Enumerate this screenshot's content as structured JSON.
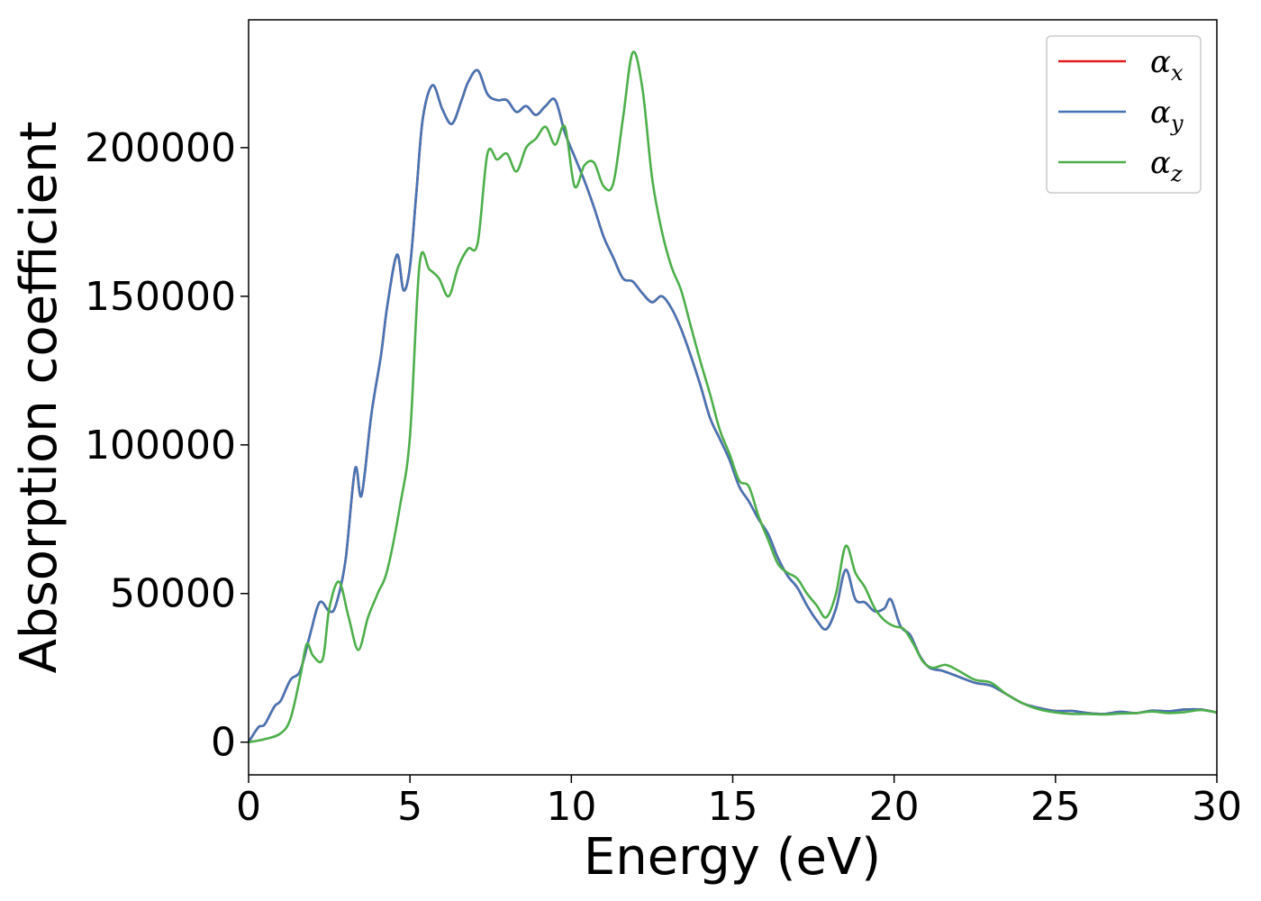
{
  "chart_data": {
    "type": "line",
    "xlabel": "Energy (eV)",
    "ylabel": "Absorption coefficient",
    "xlim": [
      0,
      30
    ],
    "ylim": [
      -11000,
      243000
    ],
    "xticks": [
      0,
      5,
      10,
      15,
      20,
      25,
      30
    ],
    "xtick_labels": [
      "0",
      "5",
      "10",
      "15",
      "20",
      "25",
      "30"
    ],
    "yticks": [
      0,
      50000,
      100000,
      150000,
      200000
    ],
    "ytick_labels": [
      "0",
      "50000",
      "100000",
      "150000",
      "200000"
    ],
    "grid": false,
    "legend_position": "top-right",
    "series": [
      {
        "name": "α_x",
        "symbol": "α",
        "subscript": "x",
        "color": "#e41a1c",
        "x": [
          0,
          0.3,
          0.5,
          0.8,
          1.0,
          1.3,
          1.6,
          1.9,
          2.2,
          2.5,
          2.7,
          3.0,
          3.3,
          3.5,
          3.8,
          4.1,
          4.3,
          4.6,
          4.8,
          5.0,
          5.2,
          5.4,
          5.7,
          6.0,
          6.3,
          6.6,
          6.8,
          7.1,
          7.4,
          7.7,
          8.0,
          8.3,
          8.6,
          8.9,
          9.2,
          9.5,
          9.8,
          10.1,
          10.4,
          10.7,
          11.0,
          11.3,
          11.6,
          11.9,
          12.2,
          12.5,
          12.8,
          13.1,
          13.4,
          13.7,
          14.0,
          14.3,
          14.6,
          14.9,
          15.2,
          15.5,
          15.8,
          16.1,
          16.4,
          16.7,
          17.0,
          17.3,
          17.6,
          17.9,
          18.2,
          18.5,
          18.8,
          19.1,
          19.4,
          19.7,
          19.9,
          20.2,
          20.5,
          20.8,
          21.1,
          21.5,
          22.0,
          22.5,
          23.0,
          23.5,
          24.0,
          24.5,
          25.0,
          25.5,
          26.0,
          26.5,
          27.0,
          27.5,
          28.0,
          28.5,
          29.0,
          29.5,
          30.0
        ],
        "y": [
          0,
          5000,
          6000,
          12000,
          14000,
          21000,
          24000,
          36000,
          47000,
          44000,
          46000,
          61000,
          92000,
          83000,
          110000,
          130000,
          147000,
          164000,
          152000,
          160000,
          185000,
          210000,
          221000,
          213000,
          208000,
          216000,
          222000,
          226000,
          218000,
          216000,
          216000,
          212000,
          214000,
          211000,
          214000,
          216000,
          205000,
          197000,
          189000,
          180000,
          170000,
          163000,
          156000,
          155000,
          151000,
          148000,
          150000,
          146000,
          139000,
          130000,
          120000,
          109000,
          102000,
          95000,
          86000,
          81000,
          75000,
          70000,
          62000,
          56000,
          52000,
          46000,
          41000,
          38000,
          45000,
          58000,
          48000,
          47000,
          44000,
          45000,
          48000,
          39000,
          36000,
          29000,
          25000,
          24000,
          22000,
          20000,
          19000,
          16000,
          13000,
          11500,
          10500,
          10500,
          9800,
          9500,
          10200,
          9800,
          10600,
          10400,
          11000,
          11000,
          10000
        ]
      },
      {
        "name": "α_y",
        "symbol": "α",
        "subscript": "y",
        "color": "#4575b4",
        "x": [
          0,
          0.3,
          0.5,
          0.8,
          1.0,
          1.3,
          1.6,
          1.9,
          2.2,
          2.5,
          2.7,
          3.0,
          3.3,
          3.5,
          3.8,
          4.1,
          4.3,
          4.6,
          4.8,
          5.0,
          5.2,
          5.4,
          5.7,
          6.0,
          6.3,
          6.6,
          6.8,
          7.1,
          7.4,
          7.7,
          8.0,
          8.3,
          8.6,
          8.9,
          9.2,
          9.5,
          9.8,
          10.1,
          10.4,
          10.7,
          11.0,
          11.3,
          11.6,
          11.9,
          12.2,
          12.5,
          12.8,
          13.1,
          13.4,
          13.7,
          14.0,
          14.3,
          14.6,
          14.9,
          15.2,
          15.5,
          15.8,
          16.1,
          16.4,
          16.7,
          17.0,
          17.3,
          17.6,
          17.9,
          18.2,
          18.5,
          18.8,
          19.1,
          19.4,
          19.7,
          19.9,
          20.2,
          20.5,
          20.8,
          21.1,
          21.5,
          22.0,
          22.5,
          23.0,
          23.5,
          24.0,
          24.5,
          25.0,
          25.5,
          26.0,
          26.5,
          27.0,
          27.5,
          28.0,
          28.5,
          29.0,
          29.5,
          30.0
        ],
        "y": [
          0,
          5000,
          6000,
          12000,
          14000,
          21000,
          24000,
          36000,
          47000,
          44000,
          46000,
          61000,
          92000,
          83000,
          110000,
          130000,
          147000,
          164000,
          152000,
          160000,
          185000,
          210000,
          221000,
          213000,
          208000,
          216000,
          222000,
          226000,
          218000,
          216000,
          216000,
          212000,
          214000,
          211000,
          214000,
          216000,
          205000,
          197000,
          189000,
          180000,
          170000,
          163000,
          156000,
          155000,
          151000,
          148000,
          150000,
          146000,
          139000,
          130000,
          120000,
          109000,
          102000,
          95000,
          86000,
          81000,
          75000,
          70000,
          62000,
          56000,
          52000,
          46000,
          41000,
          38000,
          45000,
          58000,
          48000,
          47000,
          44000,
          45000,
          48000,
          39000,
          36000,
          29000,
          25000,
          24000,
          22000,
          20000,
          19000,
          16000,
          13000,
          11500,
          10500,
          10500,
          9800,
          9500,
          10200,
          9800,
          10600,
          10400,
          11000,
          11000,
          10000
        ]
      },
      {
        "name": "α_z",
        "symbol": "α",
        "subscript": "z",
        "color": "#4daf4a",
        "x": [
          0,
          0.5,
          1.0,
          1.3,
          1.6,
          1.8,
          2.0,
          2.3,
          2.5,
          2.8,
          3.1,
          3.4,
          3.7,
          4.0,
          4.3,
          4.7,
          5.0,
          5.3,
          5.6,
          5.9,
          6.2,
          6.5,
          6.8,
          7.1,
          7.4,
          7.7,
          8.0,
          8.3,
          8.6,
          8.9,
          9.2,
          9.5,
          9.8,
          10.1,
          10.4,
          10.7,
          11.0,
          11.3,
          11.6,
          11.9,
          12.2,
          12.5,
          12.8,
          13.1,
          13.4,
          13.7,
          14.0,
          14.3,
          14.6,
          14.9,
          15.2,
          15.5,
          15.8,
          16.1,
          16.4,
          16.7,
          17.0,
          17.3,
          17.6,
          17.9,
          18.2,
          18.5,
          18.8,
          19.1,
          19.4,
          19.7,
          20.0,
          20.3,
          20.6,
          20.9,
          21.2,
          21.6,
          22.0,
          22.5,
          23.0,
          23.5,
          24.0,
          24.5,
          25.0,
          25.5,
          26.0,
          26.5,
          27.0,
          27.5,
          28.0,
          28.5,
          29.0,
          29.5,
          30.0
        ],
        "y": [
          0,
          1000,
          3000,
          8000,
          22000,
          33000,
          29000,
          28000,
          45000,
          54000,
          42000,
          31000,
          42000,
          50000,
          58000,
          80000,
          103000,
          161000,
          159000,
          156000,
          150000,
          160000,
          166000,
          168000,
          198000,
          196000,
          198000,
          192000,
          200000,
          203000,
          207000,
          201000,
          207000,
          187000,
          194000,
          195000,
          187000,
          188000,
          210000,
          232000,
          220000,
          190000,
          172000,
          160000,
          152000,
          140000,
          128000,
          117000,
          105000,
          97000,
          88000,
          86000,
          76000,
          68000,
          60000,
          57000,
          55000,
          50000,
          46000,
          42000,
          50000,
          66000,
          57000,
          52000,
          45000,
          41000,
          39000,
          38000,
          33000,
          27000,
          25000,
          26000,
          24000,
          21000,
          20000,
          16000,
          13000,
          11000,
          10000,
          9500,
          9500,
          9300,
          9600,
          9800,
          10300,
          9800,
          10100,
          10800,
          10000
        ]
      }
    ]
  }
}
